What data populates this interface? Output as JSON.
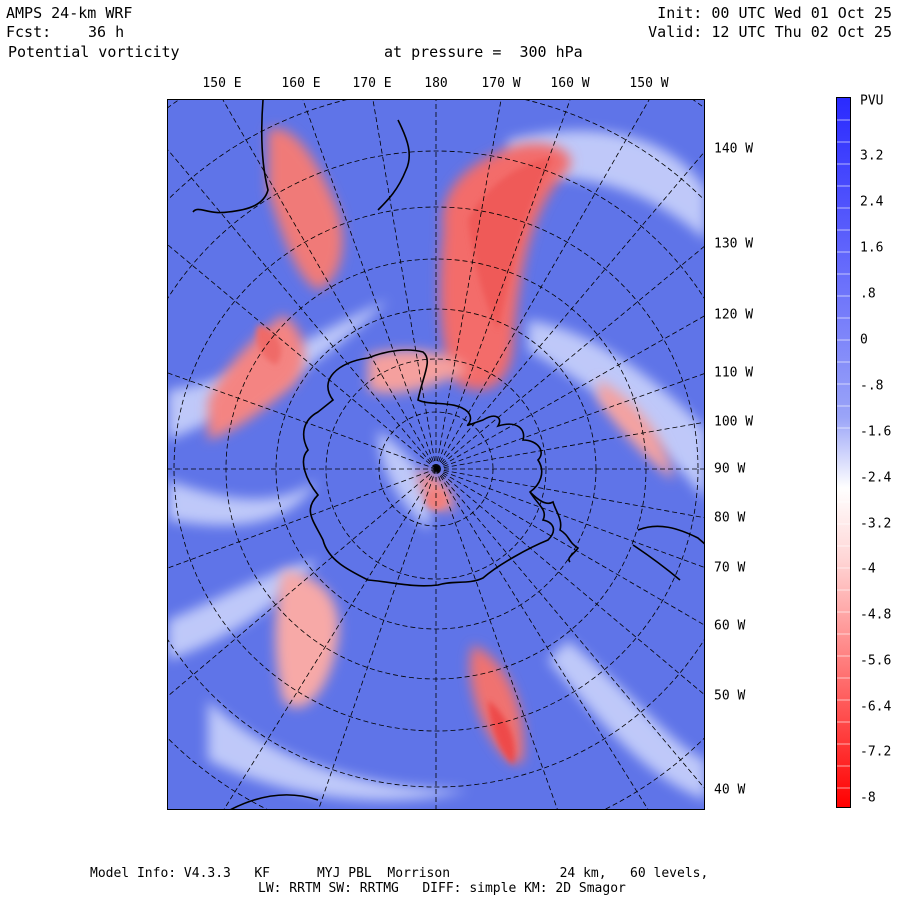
{
  "header": {
    "model": "AMPS 24-km WRF",
    "forecast_label": "Fcst:",
    "forecast_value": "36 h",
    "field": "Potential vorticity",
    "pressure": "at pressure =  300 hPa",
    "init": "Init: 00 UTC Wed 01 Oct 25",
    "valid": "Valid: 12 UTC Thu 02 Oct 25"
  },
  "map": {
    "top_longitude_labels": [
      "150 E",
      "160 E",
      "170 E",
      "180",
      "170 W",
      "160 W",
      "150 W"
    ],
    "right_longitude_labels": [
      "140 W",
      "130 W",
      "120 W",
      "110 W",
      "100 W",
      "90 W",
      "80 W",
      "70 W",
      "60 W",
      "50 W",
      "40 W"
    ]
  },
  "colorbar": {
    "units": "PVU",
    "labels": [
      "3.2",
      "2.4",
      "1.6",
      ".8",
      "0",
      "-.8",
      "-1.6",
      "-2.4",
      "-3.2",
      "-4",
      "-4.8",
      "-5.6",
      "-6.4",
      "-7.2",
      "-8"
    ],
    "colors": {
      "high": "#2a2aff",
      "mid": "#ffffff",
      "low": "#ff0000"
    }
  },
  "footer": {
    "line1": "Model Info: V4.3.3   KF      MYJ PBL  Morrison              24 km,   60 levels,",
    "line2": "LW: RRTM SW: RRTMG   DIFF: simple KM: 2D Smagor"
  }
}
